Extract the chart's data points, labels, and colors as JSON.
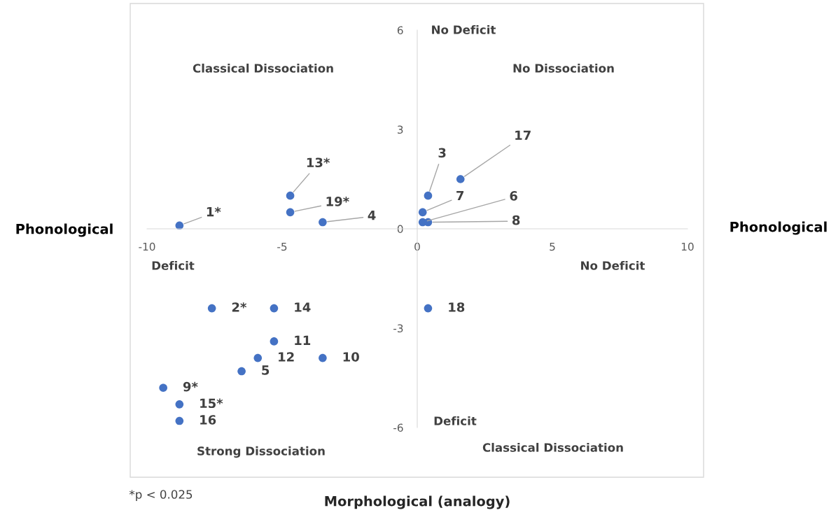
{
  "chart_data": {
    "type": "scatter",
    "xlabel": "Morphological (analogy)",
    "series": [
      {
        "color": "#4472c4",
        "x": [
          -8.8,
          -4.7,
          -4.7,
          -3.5,
          0.4,
          1.6,
          0.2,
          0.2,
          0.4,
          0.4,
          -7.6,
          -5.3,
          -5.3,
          -5.9,
          -3.5,
          -6.5,
          -9.4,
          -8.8,
          -8.8
        ],
        "values": [
          0.1,
          1.0,
          0.5,
          0.2,
          1.0,
          1.5,
          0.5,
          0.2,
          0.2,
          -2.4,
          -2.4,
          -2.4,
          -3.4,
          -3.9,
          -3.9,
          -4.3,
          -4.8,
          -5.3,
          -5.8
        ]
      }
    ],
    "xlim": [
      -10,
      10
    ],
    "ylim": [
      -6,
      6
    ],
    "xticks": [
      -10,
      -5,
      0,
      5,
      10
    ],
    "yticks": [
      -6,
      -3,
      0,
      3,
      6
    ],
    "grid": false,
    "legend": false,
    "marker": "circle",
    "annotations": [
      {
        "text": "1*",
        "x": -8.8,
        "y": 0.1
      },
      {
        "text": "13*",
        "x": -4.7,
        "y": 1.0
      },
      {
        "text": "19*",
        "x": -4.7,
        "y": 0.5
      },
      {
        "text": "4",
        "x": -3.5,
        "y": 0.2
      },
      {
        "text": "3",
        "x": 0.4,
        "y": 1.0
      },
      {
        "text": "17",
        "x": 1.6,
        "y": 1.5
      },
      {
        "text": "7",
        "x": 0.2,
        "y": 0.5
      },
      {
        "text": "6",
        "x": 0.2,
        "y": 0.2
      },
      {
        "text": "8",
        "x": 0.4,
        "y": 0.2
      },
      {
        "text": "18",
        "x": 0.4,
        "y": -2.4
      },
      {
        "text": "2*",
        "x": -7.6,
        "y": -2.4
      },
      {
        "text": "14",
        "x": -5.3,
        "y": -2.4
      },
      {
        "text": "11",
        "x": -5.3,
        "y": -3.4
      },
      {
        "text": "12",
        "x": -5.9,
        "y": -3.9
      },
      {
        "text": "10",
        "x": -3.5,
        "y": -3.9
      },
      {
        "text": "5",
        "x": -6.5,
        "y": -4.3
      },
      {
        "text": "9*",
        "x": -9.4,
        "y": -4.8
      },
      {
        "text": "15*",
        "x": -8.8,
        "y": -5.3
      },
      {
        "text": "16",
        "x": -8.8,
        "y": -5.8
      },
      "Phonological",
      "Phonological",
      "No Deficit",
      "No Dissociation",
      "Classical Dissociation",
      "Deficit",
      "No Deficit",
      "Deficit",
      "Strong Dissociation",
      "Classical Dissociation",
      "*p < 0.025"
    ]
  }
}
